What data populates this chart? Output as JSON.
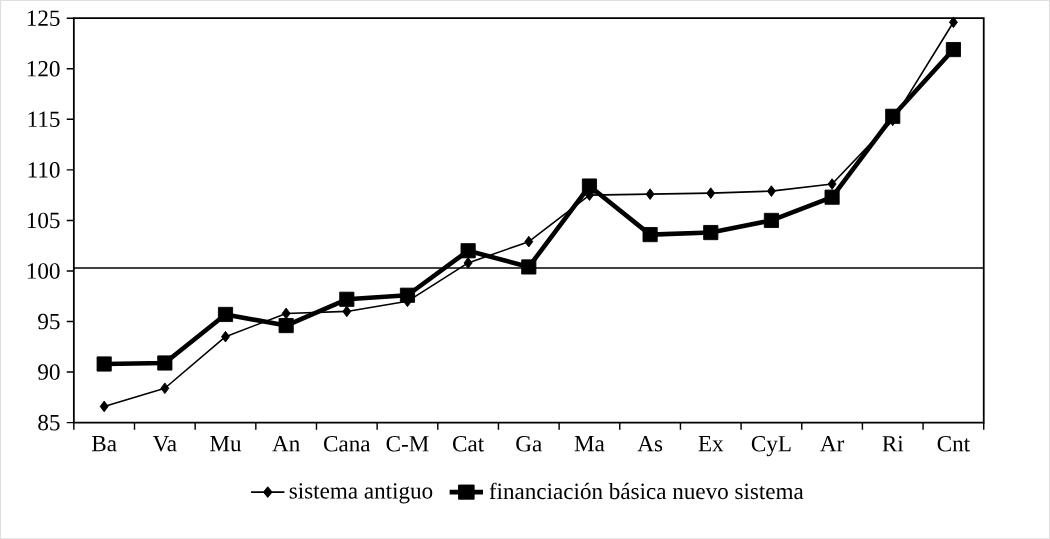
{
  "chart_data": {
    "type": "line",
    "categories": [
      "Ba",
      "Va",
      "Mu",
      "An",
      "Cana",
      "C-M",
      "Cat",
      "Ga",
      "Ma",
      "As",
      "Ex",
      "CyL",
      "Ar",
      "Ri",
      "Cnt"
    ],
    "series": [
      {
        "name": "sistema antiguo",
        "color": "#000000",
        "marker": "diamond",
        "values": [
          86.6,
          88.4,
          93.5,
          95.8,
          96.0,
          97.0,
          100.8,
          102.9,
          107.5,
          107.6,
          107.7,
          107.9,
          108.6,
          114.9,
          124.6
        ]
      },
      {
        "name": "financiación básica nuevo sistema",
        "color": "#000000",
        "marker": "square",
        "values": [
          90.8,
          90.9,
          95.7,
          94.6,
          97.2,
          97.6,
          102.0,
          100.4,
          108.4,
          103.6,
          103.8,
          105.0,
          107.3,
          115.3,
          121.9
        ]
      }
    ],
    "ylim": [
      85,
      125
    ],
    "yticks": [
      85,
      90,
      95,
      100,
      105,
      110,
      115,
      120,
      125
    ],
    "ref_lines": [
      {
        "axis": "y",
        "value": 100.3,
        "color": "#000000"
      }
    ],
    "grid": false,
    "legend": "bottom",
    "line_style": "solid"
  }
}
